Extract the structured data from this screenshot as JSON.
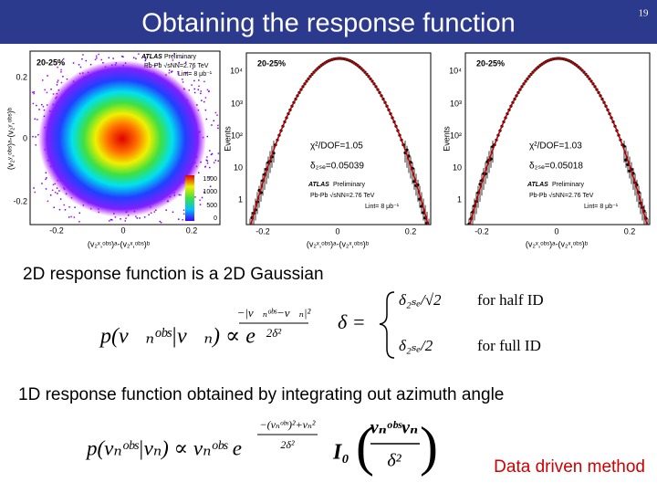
{
  "header": {
    "title": "Obtaining the response function",
    "page_number": "19"
  },
  "panels": [
    {
      "centrality": "20-25%",
      "experiment": "ATLAS",
      "status": "Preliminary",
      "system": "Pb-Pb √sNN=2.76 TeV",
      "luminosity": "Lint= 8 μb⁻¹",
      "y_label": "(v₂ʸ,ᵒᵇˢ)ᵃ-(v₂ʸ,ᵒᵇˢ)ᵇ",
      "x_label": "(v₂ˣ,ᵒᵇˢ)ᵃ-(v₂ˣ,ᵒᵇˢ)ᵇ",
      "y_ticks": [
        "0.2",
        "0",
        "-0.2"
      ],
      "x_ticks": [
        "-0.2",
        "0",
        "0.2"
      ],
      "colorbar_ticks": [
        "1500",
        "1000",
        "500",
        "0"
      ]
    },
    {
      "centrality": "20-25%",
      "experiment": "ATLAS",
      "status": "Preliminary",
      "system": "Pb-Pb √sNN=2.76 TeV",
      "luminosity": "Lint= 8 μb⁻¹",
      "y_label": "Events",
      "x_label": "(v₂ˣ,ᵒᵇˢ)ᵃ-(v₂ˣ,ᵒᵇˢ)ᵇ",
      "chi2": "χ²/DOF=1.05",
      "delta": "δ₂ₛₑ=0.05039",
      "y_ticks": [
        "10⁴",
        "10³",
        "10²",
        "10",
        "1"
      ],
      "x_ticks": [
        "-0.2",
        "0",
        "0.2"
      ]
    },
    {
      "centrality": "20-25%",
      "experiment": "ATLAS",
      "status": "Preliminary",
      "system": "Pb-Pb √sNN=2.76 TeV",
      "luminosity": "Lint= 8 μb⁻¹",
      "y_label": "Events",
      "x_label": "(v₂ˣ,ᵒᵇˢ)ᵃ-(v₂ˣ,ᵒᵇˢ)ᵇ",
      "chi2": "χ²/DOF=1.03",
      "delta": "δ₂ₛₑ=0.05018",
      "y_ticks": [
        "10⁴",
        "10³",
        "10²",
        "10",
        "1"
      ],
      "x_ticks": [
        "-0.2",
        "0",
        "0.2"
      ]
    }
  ],
  "body": {
    "statement_2d": "2D response function is a 2D Gaussian",
    "formula_2d": {
      "lhs": "p(v⃗ₙᵒᵇˢ|v⃗ₙ) ∝ e",
      "exp_numerator": "−|v⃗ₙᵒᵇˢ−v⃗ₙ|²",
      "exp_denominator": "2δ²"
    },
    "delta_def": {
      "lhs": "δ =",
      "case_half": "δ₂ₛₑ/√2",
      "cond_half": "for half ID",
      "case_full": "δ₂ₛₑ/2",
      "cond_full": "for full ID"
    },
    "statement_1d": "1D response function obtained by integrating out azimuth angle",
    "formula_1d": {
      "lhs": "p(vₙᵒᵇˢ|vₙ) ∝ vₙᵒᵇˢ e",
      "exp_numerator": "−(vₙᵒᵇˢ)²+vₙ²",
      "exp_denominator": "2δ²",
      "bessel": "I₀",
      "arg_numerator": "vₙᵒᵇˢvₙ",
      "arg_denominator": "δ²"
    },
    "note": "Data driven method"
  }
}
